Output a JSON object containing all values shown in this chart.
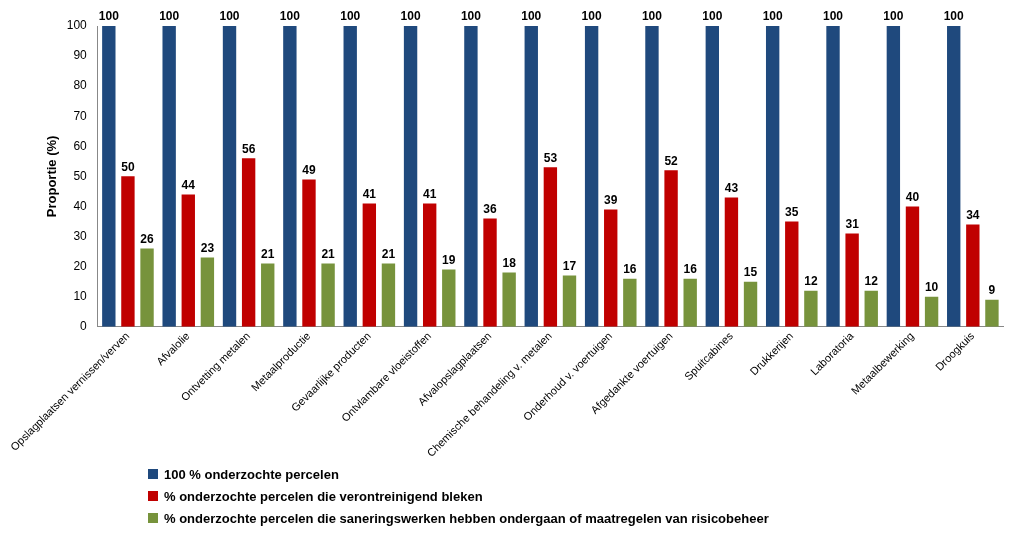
{
  "chart_data": {
    "type": "bar",
    "ylabel": "Proportie (%)",
    "categories": [
      "Opslagplaatsen vernissen/verven",
      "Afvalolie",
      "Ontvetting metalen",
      "Metaalproductie",
      "Gevaarlijke producten",
      "Ontvlambare vloeistoffen",
      "Afvalopslagplaatsen",
      "Chemische behandeling v. metalen",
      "Onderhoud v. voertuigen",
      "Afgedankte voertuigen",
      "Spuitcabines",
      "Drukkerijen",
      "Laboratoria",
      "Metaalbewerking",
      "Droogkuis"
    ],
    "series": [
      {
        "name": "100 % onderzochte percelen",
        "color": "#1f497d",
        "values": [
          100,
          100,
          100,
          100,
          100,
          100,
          100,
          100,
          100,
          100,
          100,
          100,
          100,
          100,
          100
        ]
      },
      {
        "name": "% onderzochte percelen die verontreinigend bleken",
        "color": "#c00000",
        "values": [
          50,
          44,
          56,
          49,
          41,
          41,
          36,
          53,
          39,
          52,
          43,
          35,
          31,
          40,
          34
        ]
      },
      {
        "name": "% onderzochte percelen die saneringswerken hebben ondergaan of maatregelen van risicobeheer",
        "color": "#77933c",
        "values": [
          26,
          23,
          21,
          21,
          21,
          19,
          18,
          17,
          16,
          16,
          15,
          12,
          12,
          10,
          9
        ]
      }
    ],
    "ylim": [
      0,
      100
    ],
    "yticks": [
      0,
      10,
      20,
      30,
      40,
      50,
      60,
      70,
      80,
      90,
      100
    ],
    "grid": false,
    "legend": "bottom left",
    "data_labels": true
  }
}
